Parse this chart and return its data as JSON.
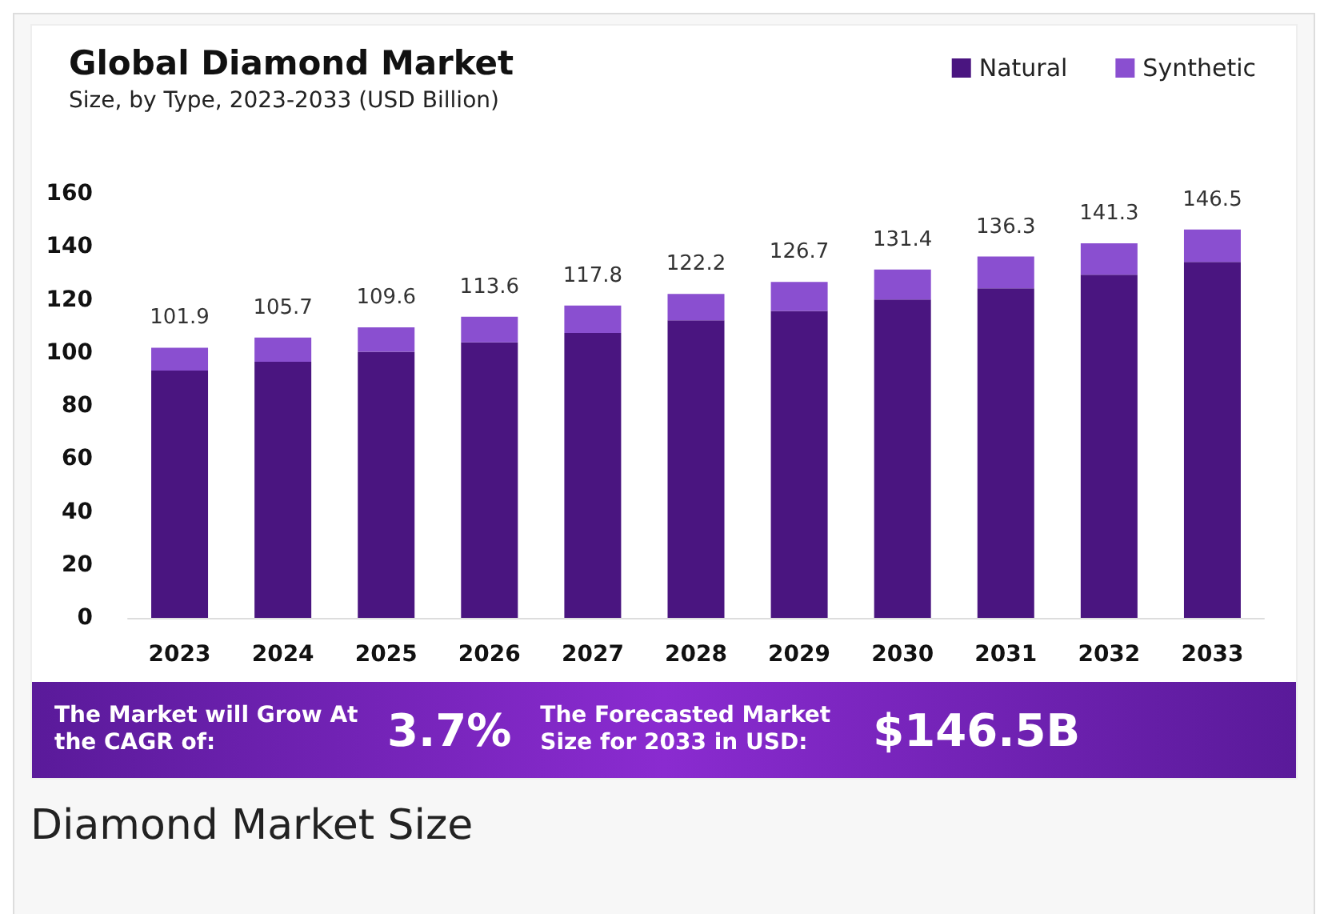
{
  "chart_data": {
    "type": "bar",
    "title": "Global Diamond Market",
    "subtitle": "Size, by Type, 2023-2033 (USD Billion)",
    "categories": [
      "2023",
      "2024",
      "2025",
      "2026",
      "2027",
      "2028",
      "2029",
      "2030",
      "2031",
      "2032",
      "2033"
    ],
    "series": [
      {
        "name": "Natural",
        "color": "#4a1580",
        "values": [
          93.3,
          96.6,
          100.4,
          103.9,
          107.5,
          112.2,
          115.8,
          120.1,
          124.3,
          129.4,
          134.3
        ]
      },
      {
        "name": "Synthetic",
        "color": "#8a4fd0",
        "values": [
          8.6,
          9.1,
          9.2,
          9.7,
          10.3,
          10.0,
          10.9,
          11.3,
          12.0,
          11.9,
          12.2
        ]
      }
    ],
    "stacked": true,
    "totals": [
      "101.9",
      "105.7",
      "109.6",
      "113.6",
      "117.8",
      "122.2",
      "126.7",
      "131.4",
      "136.3",
      "141.3",
      "146.5"
    ],
    "ylim": [
      0,
      160
    ],
    "yticks": [
      0,
      20,
      40,
      60,
      80,
      100,
      120,
      140,
      160
    ],
    "grid": false,
    "legend": "top right",
    "annotations": [
      "The Market will Grow At the CAGR of:",
      "3.7%",
      "The Forecasted Market Size for 2033 in USD:",
      "$146.5B",
      "Diamond Market Size"
    ]
  }
}
